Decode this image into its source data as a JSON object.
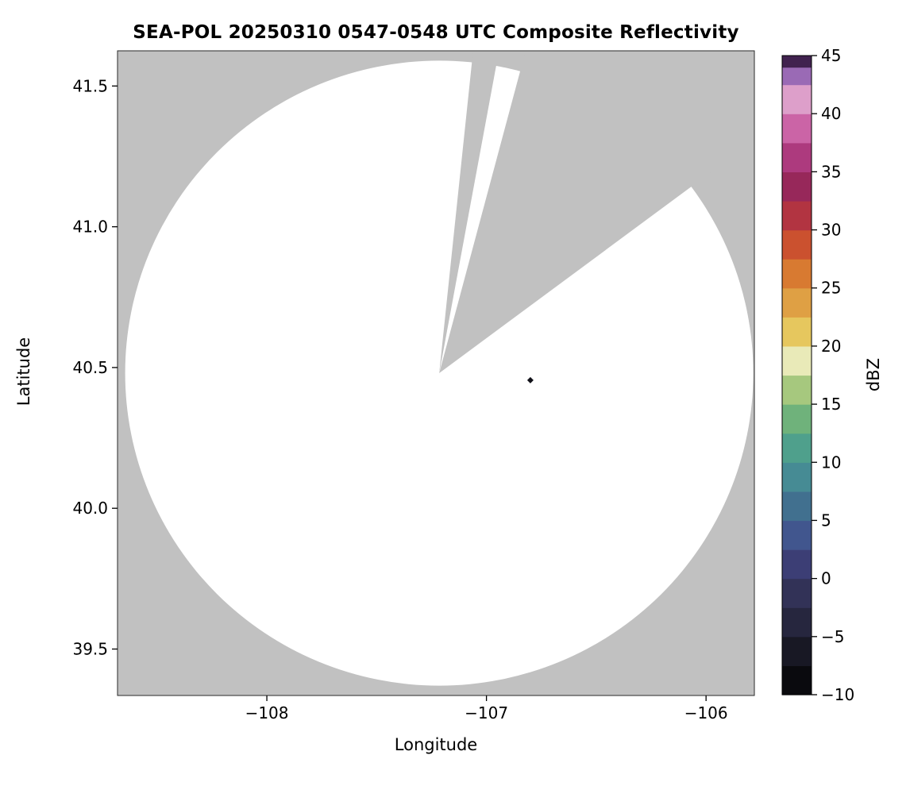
{
  "figure": {
    "background": "#ffffff",
    "masked_color": "#c1c1c1",
    "coverage_color": "#ffffff",
    "spine_color": "#2a2a2a"
  },
  "chart_data": {
    "type": "heatmap",
    "title": "SEA-POL 20250310 0547-0548 UTC Composite Reflectivity",
    "xlabel": "Longitude",
    "ylabel": "Latitude",
    "xlim": [
      -108.68,
      -105.78
    ],
    "ylim": [
      39.335,
      41.625
    ],
    "x_ticks": [
      -108,
      -107,
      -106
    ],
    "x_tick_labels": [
      "−108",
      "−107",
      "−106"
    ],
    "y_ticks": [
      39.5,
      40.0,
      40.5,
      41.0,
      41.5
    ],
    "y_tick_labels": [
      "39.5",
      "40.0",
      "40.5",
      "41.0",
      "41.5"
    ],
    "grid": false,
    "legend": "none",
    "radar_coverage": {
      "center_lon": -107.215,
      "center_lat": 40.48,
      "radius_lon_deg": 1.43,
      "radius_lat_deg": 1.11,
      "blocked_sector_azimuths_deg": [
        [
          6,
          10.5
        ],
        [
          15,
          53.5
        ]
      ],
      "description": "White circular radar scan area on gray no-data background; two gray blocked/no-data sectors radiate from the radar center toward the NNE and NE, with a thin white sliver of coverage between them"
    },
    "echoes": [
      {
        "lon": -106.8,
        "lat": 40.455,
        "dbz": -9,
        "color": "#111118",
        "note": "single small dark echo pixel east of radar center"
      }
    ],
    "colorbar": {
      "label": "dBZ",
      "min": -10,
      "max": 45,
      "ticks": [
        45,
        40,
        35,
        30,
        25,
        20,
        15,
        10,
        5,
        0,
        -5,
        -10
      ],
      "bands": [
        {
          "from": -10,
          "to": -7.5,
          "color": "#0a0a0e"
        },
        {
          "from": -7.5,
          "to": -5,
          "color": "#181824"
        },
        {
          "from": -5,
          "to": -2.5,
          "color": "#26263e"
        },
        {
          "from": -2.5,
          "to": 0,
          "color": "#323257"
        },
        {
          "from": 0,
          "to": 2.5,
          "color": "#3c3e75"
        },
        {
          "from": 2.5,
          "to": 5,
          "color": "#41568e"
        },
        {
          "from": 5,
          "to": 7.5,
          "color": "#41708f"
        },
        {
          "from": 7.5,
          "to": 10,
          "color": "#468b94"
        },
        {
          "from": 10,
          "to": 12.5,
          "color": "#4fa08c"
        },
        {
          "from": 12.5,
          "to": 15,
          "color": "#6fb27b"
        },
        {
          "from": 15,
          "to": 17.5,
          "color": "#a6c87e"
        },
        {
          "from": 17.5,
          "to": 20,
          "color": "#e9eab8"
        },
        {
          "from": 20,
          "to": 22.5,
          "color": "#e6c75e"
        },
        {
          "from": 22.5,
          "to": 25,
          "color": "#dfa044"
        },
        {
          "from": 25,
          "to": 27.5,
          "color": "#d87a31"
        },
        {
          "from": 27.5,
          "to": 30,
          "color": "#cb512f"
        },
        {
          "from": 30,
          "to": 32.5,
          "color": "#b23441"
        },
        {
          "from": 32.5,
          "to": 35,
          "color": "#97285a"
        },
        {
          "from": 35,
          "to": 37.5,
          "color": "#ad3a7e"
        },
        {
          "from": 37.5,
          "to": 40,
          "color": "#cb64a6"
        },
        {
          "from": 40,
          "to": 42.5,
          "color": "#dd9fca"
        },
        {
          "from": 42.5,
          "to": 44,
          "color": "#9a6ab5"
        },
        {
          "from": 44,
          "to": 45,
          "color": "#41224f"
        }
      ]
    }
  }
}
